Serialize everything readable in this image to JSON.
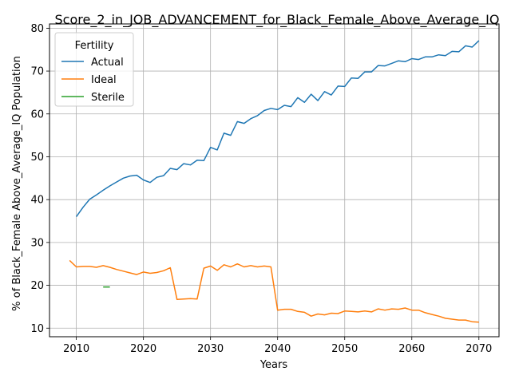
{
  "chart_data": {
    "type": "line",
    "title": "Score_2_in_JOB_ADVANCEMENT_for_Black_Female_Above_Average_IQ",
    "xlabel": "Years",
    "ylabel": "% of Black_Female Above_Average_IQ Population",
    "xlim": [
      2006,
      2073
    ],
    "ylim": [
      8,
      81
    ],
    "xticks": [
      2010,
      2020,
      2030,
      2040,
      2050,
      2060,
      2070
    ],
    "yticks": [
      10,
      20,
      30,
      40,
      50,
      60,
      70,
      80
    ],
    "grid": true,
    "legend": {
      "title": "Fertility",
      "placement": "top-left"
    },
    "series": [
      {
        "name": "Actual",
        "color": "#1f77b4",
        "x": [
          2010,
          2011,
          2012,
          2013,
          2014,
          2015,
          2016,
          2017,
          2018,
          2019,
          2020,
          2021,
          2022,
          2023,
          2024,
          2025,
          2026,
          2027,
          2028,
          2029,
          2030,
          2031,
          2032,
          2033,
          2034,
          2035,
          2036,
          2037,
          2038,
          2039,
          2040,
          2041,
          2042,
          2043,
          2044,
          2045,
          2046,
          2047,
          2048,
          2049,
          2050,
          2051,
          2052,
          2053,
          2054,
          2055,
          2056,
          2057,
          2058,
          2059,
          2060,
          2061,
          2062,
          2063,
          2064,
          2065,
          2066,
          2067,
          2068,
          2069,
          2070
        ],
        "y": [
          36.0,
          38.2,
          40.1,
          41.1,
          42.2,
          43.2,
          44.1,
          45.0,
          45.5,
          45.7,
          44.6,
          44.0,
          45.2,
          45.6,
          47.3,
          47.0,
          48.4,
          48.1,
          49.2,
          49.1,
          52.2,
          51.6,
          55.5,
          55.0,
          58.2,
          57.8,
          58.9,
          59.6,
          60.8,
          61.3,
          61.0,
          62.0,
          61.7,
          63.8,
          62.7,
          64.6,
          63.1,
          65.2,
          64.4,
          66.5,
          66.4,
          68.4,
          68.3,
          69.8,
          69.8,
          71.3,
          71.2,
          71.8,
          72.4,
          72.2,
          72.9,
          72.7,
          73.3,
          73.3,
          73.8,
          73.6,
          74.6,
          74.5,
          75.9,
          75.6,
          77.1
        ]
      },
      {
        "name": "Ideal",
        "color": "#ff7f0e",
        "x": [
          2009,
          2010,
          2011,
          2012,
          2013,
          2014,
          2015,
          2016,
          2017,
          2018,
          2019,
          2020,
          2021,
          2022,
          2023,
          2024,
          2025,
          2026,
          2027,
          2028,
          2029,
          2030,
          2031,
          2032,
          2033,
          2034,
          2035,
          2036,
          2037,
          2038,
          2039,
          2040,
          2041,
          2042,
          2043,
          2044,
          2045,
          2046,
          2047,
          2048,
          2049,
          2050,
          2051,
          2052,
          2053,
          2054,
          2055,
          2056,
          2057,
          2058,
          2059,
          2060,
          2061,
          2062,
          2063,
          2064,
          2065,
          2066,
          2067,
          2068,
          2069,
          2070
        ],
        "y": [
          25.8,
          24.3,
          24.4,
          24.4,
          24.2,
          24.6,
          24.2,
          23.7,
          23.3,
          22.9,
          22.5,
          23.1,
          22.8,
          23.0,
          23.4,
          24.1,
          16.7,
          16.8,
          16.9,
          16.8,
          24.0,
          24.5,
          23.5,
          24.8,
          24.3,
          25.0,
          24.3,
          24.6,
          24.3,
          24.5,
          24.3,
          14.2,
          14.4,
          14.4,
          13.9,
          13.7,
          12.8,
          13.3,
          13.1,
          13.5,
          13.4,
          14.0,
          13.9,
          13.8,
          14.0,
          13.8,
          14.5,
          14.2,
          14.5,
          14.4,
          14.7,
          14.2,
          14.2,
          13.6,
          13.2,
          12.8,
          12.3,
          12.1,
          11.9,
          11.9,
          11.5,
          11.4
        ]
      },
      {
        "name": "Sterile",
        "color": "#2ca02c",
        "x": [
          2014,
          2015
        ],
        "y": [
          19.6,
          19.6
        ]
      }
    ]
  }
}
